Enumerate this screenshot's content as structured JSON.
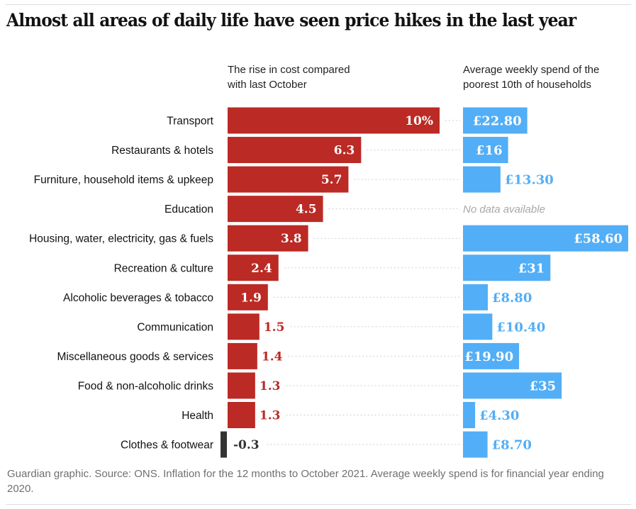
{
  "header": {
    "title": "Almost all areas of daily life have seen price hikes in the last year",
    "left_subhead_line1": "The rise in cost compared",
    "left_subhead_line2": "with last October",
    "right_subhead_line1": "Average weekly spend of the",
    "right_subhead_line2": "poorest 10th of households"
  },
  "footnote": "Guardian graphic. Source: ONS. Inflation for the 12 months to October 2021. Average weekly spend is for financial year ending 2020.",
  "colors": {
    "positive_bar": "#bb2a24",
    "negative_bar": "#333333",
    "spend_bar": "#52aef6",
    "dotted_line": "#cfcfcf",
    "no_data_text": "#a8a8a8",
    "category_text": "#121212"
  },
  "chart_data": [
    {
      "type": "bar",
      "orientation": "horizontal",
      "title": "The rise in cost compared with last October",
      "unit": "%",
      "categories": [
        "Transport",
        "Restaurants & hotels",
        "Furniture, household items & upkeep",
        "Education",
        "Housing, water, electricity, gas & fuels",
        "Recreation & culture",
        "Alcoholic beverages & tobacco",
        "Communication",
        "Miscellaneous goods & services",
        "Food & non-alcoholic drinks",
        "Health",
        "Clothes & footwear"
      ],
      "values": [
        10,
        6.3,
        5.7,
        4.5,
        3.8,
        2.4,
        1.9,
        1.5,
        1.4,
        1.3,
        1.3,
        -0.3
      ],
      "labels": [
        "10%",
        "6.3",
        "5.7",
        "4.5",
        "3.8",
        "2.4",
        "1.9",
        "1.5",
        "1.4",
        "1.3",
        "1.3",
        "-0.3"
      ],
      "xlim": [
        -0.3,
        10
      ],
      "grid": false,
      "legend": "none"
    },
    {
      "type": "bar",
      "orientation": "horizontal",
      "title": "Average weekly spend of the poorest 10th of households",
      "unit": "£",
      "categories": [
        "Transport",
        "Restaurants & hotels",
        "Furniture, household items & upkeep",
        "Education",
        "Housing, water, electricity, gas & fuels",
        "Recreation & culture",
        "Alcoholic beverages & tobacco",
        "Communication",
        "Miscellaneous goods & services",
        "Food & non-alcoholic drinks",
        "Health",
        "Clothes & footwear"
      ],
      "values": [
        22.8,
        16,
        13.3,
        null,
        58.6,
        31,
        8.8,
        10.4,
        19.9,
        35,
        4.3,
        8.7
      ],
      "labels": [
        "£22.80",
        "£16",
        "£13.30",
        "No data available",
        "£58.60",
        "£31",
        "£8.80",
        "£10.40",
        "£19.90",
        "£35",
        "£4.30",
        "£8.70"
      ],
      "xlim": [
        0,
        58.6
      ],
      "grid": false,
      "legend": "none"
    }
  ]
}
